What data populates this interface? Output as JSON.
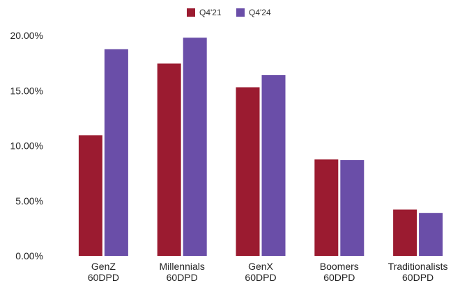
{
  "chart_data": {
    "type": "bar",
    "categories": [
      [
        "GenZ",
        "60DPD"
      ],
      [
        "Millennials",
        "60DPD"
      ],
      [
        "GenX",
        "60DPD"
      ],
      [
        "Boomers",
        "60DPD"
      ],
      [
        "Traditionalists",
        "60DPD"
      ]
    ],
    "series": [
      {
        "name": "Q4'21",
        "color": "#9b1b30",
        "values": [
          10.95,
          17.45,
          15.3,
          8.75,
          4.2
        ]
      },
      {
        "name": "Q4'24",
        "color": "#6a4ea8",
        "values": [
          18.75,
          19.8,
          16.4,
          8.7,
          3.9
        ]
      }
    ],
    "ylim": [
      0,
      20
    ],
    "yticks": [
      0,
      5,
      10,
      15,
      20
    ],
    "ytick_labels": [
      "0.00%",
      "5.00%",
      "10.00%",
      "15.00%",
      "20.00%"
    ],
    "grid": false,
    "legend_position": "top-center",
    "title": "",
    "xlabel": "",
    "ylabel": ""
  }
}
